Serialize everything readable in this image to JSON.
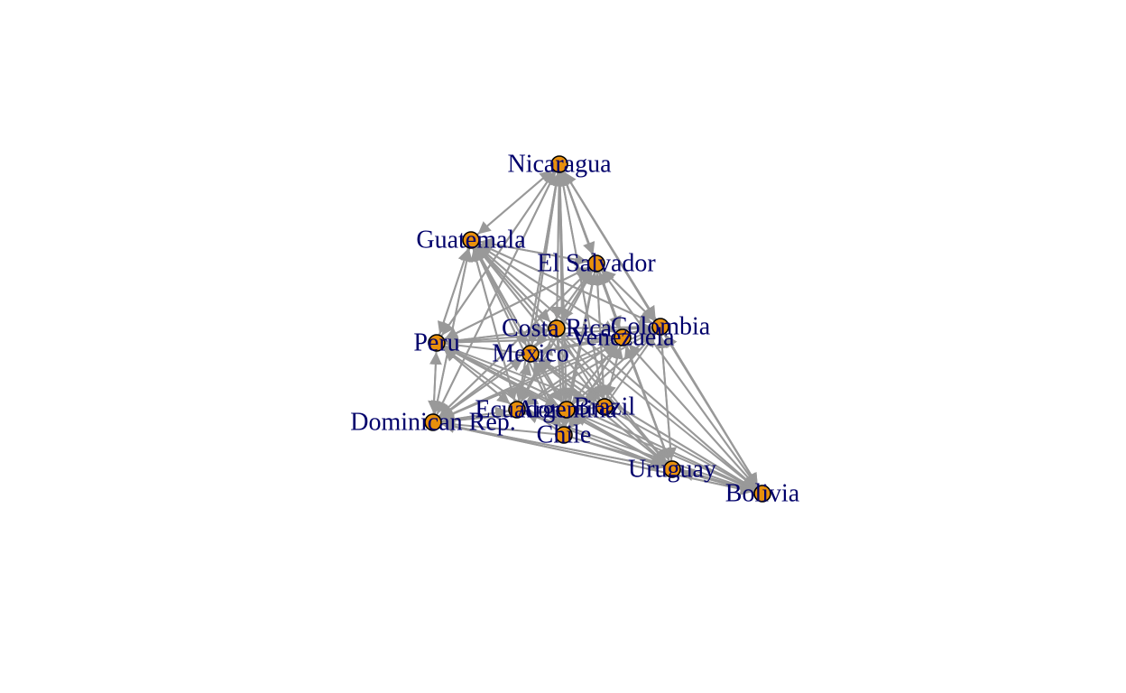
{
  "graph": {
    "type": "directed-network",
    "colors": {
      "edge": "#999999",
      "node_fill": "#e8900c",
      "node_stroke": "#000000",
      "label": "#00006b"
    },
    "nodes": [
      {
        "id": "nicaragua",
        "label": "Nicaragua"
      },
      {
        "id": "guatemala",
        "label": "Guatemala"
      },
      {
        "id": "el-salvador",
        "label": "El Salvador"
      },
      {
        "id": "costa-rica",
        "label": "Costa Rica"
      },
      {
        "id": "colombia",
        "label": "Colombia"
      },
      {
        "id": "venezuela",
        "label": "Venezuela"
      },
      {
        "id": "peru",
        "label": "Peru"
      },
      {
        "id": "mexico",
        "label": "Mexico"
      },
      {
        "id": "ecuador",
        "label": "Ecuador"
      },
      {
        "id": "argentina",
        "label": "Argentina"
      },
      {
        "id": "brazil",
        "label": "Brazil"
      },
      {
        "id": "chile",
        "label": "Chile"
      },
      {
        "id": "dominican-rep",
        "label": "Dominican Rep."
      },
      {
        "id": "uruguay",
        "label": "Uruguay"
      },
      {
        "id": "bolivia",
        "label": "Bolivia"
      }
    ],
    "edges": [
      [
        "nicaragua",
        "guatemala"
      ],
      [
        "nicaragua",
        "el-salvador"
      ],
      [
        "nicaragua",
        "costa-rica"
      ],
      [
        "nicaragua",
        "colombia"
      ],
      [
        "nicaragua",
        "venezuela"
      ],
      [
        "nicaragua",
        "peru"
      ],
      [
        "nicaragua",
        "mexico"
      ],
      [
        "nicaragua",
        "ecuador"
      ],
      [
        "nicaragua",
        "argentina"
      ],
      [
        "nicaragua",
        "brazil"
      ],
      [
        "nicaragua",
        "chile"
      ],
      [
        "nicaragua",
        "dominican-rep"
      ],
      [
        "nicaragua",
        "uruguay"
      ],
      [
        "nicaragua",
        "bolivia"
      ],
      [
        "guatemala",
        "nicaragua"
      ],
      [
        "guatemala",
        "el-salvador"
      ],
      [
        "guatemala",
        "costa-rica"
      ],
      [
        "guatemala",
        "peru"
      ],
      [
        "guatemala",
        "mexico"
      ],
      [
        "guatemala",
        "venezuela"
      ],
      [
        "guatemala",
        "colombia"
      ],
      [
        "guatemala",
        "ecuador"
      ],
      [
        "guatemala",
        "argentina"
      ],
      [
        "guatemala",
        "brazil"
      ],
      [
        "guatemala",
        "chile"
      ],
      [
        "guatemala",
        "dominican-rep"
      ],
      [
        "guatemala",
        "uruguay"
      ],
      [
        "guatemala",
        "bolivia"
      ],
      [
        "el-salvador",
        "nicaragua"
      ],
      [
        "el-salvador",
        "guatemala"
      ],
      [
        "el-salvador",
        "costa-rica"
      ],
      [
        "el-salvador",
        "peru"
      ],
      [
        "el-salvador",
        "mexico"
      ],
      [
        "el-salvador",
        "colombia"
      ],
      [
        "el-salvador",
        "venezuela"
      ],
      [
        "el-salvador",
        "ecuador"
      ],
      [
        "el-salvador",
        "argentina"
      ],
      [
        "el-salvador",
        "brazil"
      ],
      [
        "el-salvador",
        "chile"
      ],
      [
        "el-salvador",
        "dominican-rep"
      ],
      [
        "el-salvador",
        "uruguay"
      ],
      [
        "el-salvador",
        "bolivia"
      ],
      [
        "costa-rica",
        "nicaragua"
      ],
      [
        "costa-rica",
        "guatemala"
      ],
      [
        "costa-rica",
        "el-salvador"
      ],
      [
        "costa-rica",
        "peru"
      ],
      [
        "costa-rica",
        "colombia"
      ],
      [
        "costa-rica",
        "ecuador"
      ],
      [
        "costa-rica",
        "argentina"
      ],
      [
        "costa-rica",
        "brazil"
      ],
      [
        "costa-rica",
        "chile"
      ],
      [
        "costa-rica",
        "dominican-rep"
      ],
      [
        "costa-rica",
        "uruguay"
      ],
      [
        "costa-rica",
        "bolivia"
      ],
      [
        "colombia",
        "nicaragua"
      ],
      [
        "colombia",
        "guatemala"
      ],
      [
        "colombia",
        "el-salvador"
      ],
      [
        "colombia",
        "peru"
      ],
      [
        "colombia",
        "mexico"
      ],
      [
        "colombia",
        "ecuador"
      ],
      [
        "colombia",
        "argentina"
      ],
      [
        "colombia",
        "chile"
      ],
      [
        "colombia",
        "dominican-rep"
      ],
      [
        "colombia",
        "uruguay"
      ],
      [
        "colombia",
        "bolivia"
      ],
      [
        "venezuela",
        "nicaragua"
      ],
      [
        "venezuela",
        "guatemala"
      ],
      [
        "venezuela",
        "el-salvador"
      ],
      [
        "venezuela",
        "peru"
      ],
      [
        "venezuela",
        "mexico"
      ],
      [
        "venezuela",
        "ecuador"
      ],
      [
        "venezuela",
        "argentina"
      ],
      [
        "venezuela",
        "brazil"
      ],
      [
        "venezuela",
        "chile"
      ],
      [
        "venezuela",
        "dominican-rep"
      ],
      [
        "venezuela",
        "uruguay"
      ],
      [
        "venezuela",
        "bolivia"
      ],
      [
        "peru",
        "nicaragua"
      ],
      [
        "peru",
        "guatemala"
      ],
      [
        "peru",
        "el-salvador"
      ],
      [
        "peru",
        "costa-rica"
      ],
      [
        "peru",
        "venezuela"
      ],
      [
        "peru",
        "dominican-rep"
      ],
      [
        "peru",
        "ecuador"
      ],
      [
        "peru",
        "argentina"
      ],
      [
        "peru",
        "uruguay"
      ],
      [
        "peru",
        "bolivia"
      ],
      [
        "mexico",
        "nicaragua"
      ],
      [
        "mexico",
        "guatemala"
      ],
      [
        "mexico",
        "el-salvador"
      ],
      [
        "mexico",
        "peru"
      ],
      [
        "mexico",
        "venezuela"
      ],
      [
        "mexico",
        "colombia"
      ],
      [
        "mexico",
        "ecuador"
      ],
      [
        "mexico",
        "argentina"
      ],
      [
        "mexico",
        "brazil"
      ],
      [
        "mexico",
        "chile"
      ],
      [
        "mexico",
        "dominican-rep"
      ],
      [
        "mexico",
        "uruguay"
      ],
      [
        "mexico",
        "bolivia"
      ],
      [
        "ecuador",
        "nicaragua"
      ],
      [
        "ecuador",
        "guatemala"
      ],
      [
        "ecuador",
        "el-salvador"
      ],
      [
        "ecuador",
        "peru"
      ],
      [
        "ecuador",
        "mexico"
      ],
      [
        "ecuador",
        "venezuela"
      ],
      [
        "ecuador",
        "colombia"
      ],
      [
        "ecuador",
        "dominican-rep"
      ],
      [
        "ecuador",
        "uruguay"
      ],
      [
        "ecuador",
        "bolivia"
      ],
      [
        "argentina",
        "nicaragua"
      ],
      [
        "argentina",
        "guatemala"
      ],
      [
        "argentina",
        "el-salvador"
      ],
      [
        "argentina",
        "peru"
      ],
      [
        "argentina",
        "mexico"
      ],
      [
        "argentina",
        "venezuela"
      ],
      [
        "argentina",
        "colombia"
      ],
      [
        "argentina",
        "dominican-rep"
      ],
      [
        "argentina",
        "uruguay"
      ],
      [
        "argentina",
        "bolivia"
      ],
      [
        "brazil",
        "nicaragua"
      ],
      [
        "brazil",
        "guatemala"
      ],
      [
        "brazil",
        "el-salvador"
      ],
      [
        "brazil",
        "peru"
      ],
      [
        "brazil",
        "mexico"
      ],
      [
        "brazil",
        "venezuela"
      ],
      [
        "brazil",
        "colombia"
      ],
      [
        "brazil",
        "dominican-rep"
      ],
      [
        "brazil",
        "uruguay"
      ],
      [
        "brazil",
        "bolivia"
      ],
      [
        "chile",
        "nicaragua"
      ],
      [
        "chile",
        "guatemala"
      ],
      [
        "chile",
        "el-salvador"
      ],
      [
        "chile",
        "peru"
      ],
      [
        "chile",
        "mexico"
      ],
      [
        "chile",
        "venezuela"
      ],
      [
        "chile",
        "colombia"
      ],
      [
        "chile",
        "dominican-rep"
      ],
      [
        "chile",
        "uruguay"
      ],
      [
        "chile",
        "bolivia"
      ],
      [
        "dominican-rep",
        "nicaragua"
      ],
      [
        "dominican-rep",
        "guatemala"
      ],
      [
        "dominican-rep",
        "el-salvador"
      ],
      [
        "dominican-rep",
        "peru"
      ],
      [
        "dominican-rep",
        "mexico"
      ],
      [
        "dominican-rep",
        "ecuador"
      ],
      [
        "dominican-rep",
        "argentina"
      ],
      [
        "dominican-rep",
        "uruguay"
      ],
      [
        "dominican-rep",
        "bolivia"
      ],
      [
        "uruguay",
        "nicaragua"
      ],
      [
        "uruguay",
        "guatemala"
      ],
      [
        "uruguay",
        "el-salvador"
      ],
      [
        "uruguay",
        "peru"
      ],
      [
        "uruguay",
        "mexico"
      ],
      [
        "uruguay",
        "colombia"
      ],
      [
        "uruguay",
        "venezuela"
      ],
      [
        "uruguay",
        "ecuador"
      ],
      [
        "uruguay",
        "argentina"
      ],
      [
        "uruguay",
        "dominican-rep"
      ],
      [
        "uruguay",
        "bolivia"
      ],
      [
        "bolivia",
        "nicaragua"
      ],
      [
        "bolivia",
        "guatemala"
      ],
      [
        "bolivia",
        "el-salvador"
      ],
      [
        "bolivia",
        "peru"
      ],
      [
        "bolivia",
        "mexico"
      ],
      [
        "bolivia",
        "venezuela"
      ],
      [
        "bolivia",
        "colombia"
      ],
      [
        "bolivia",
        "dominican-rep"
      ],
      [
        "bolivia",
        "uruguay"
      ]
    ]
  }
}
